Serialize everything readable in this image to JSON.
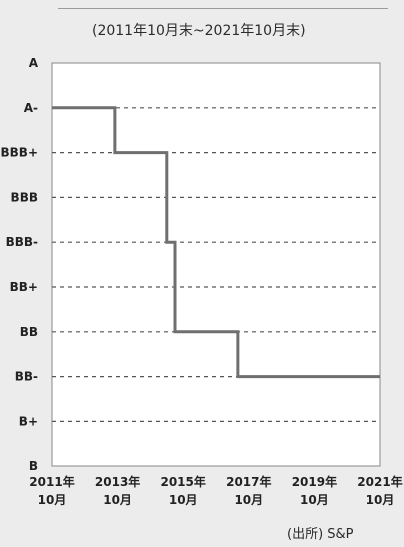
{
  "chart_data": {
    "type": "line",
    "subtitle": "(2011年10月末~2021年10月末)",
    "source": "(出所) S&P",
    "y_categories": [
      "A",
      "A-",
      "BBB+",
      "BBB",
      "BBB-",
      "BB+",
      "BB",
      "BB-",
      "B+",
      "B"
    ],
    "x_ticks": [
      {
        "year": "2011年",
        "month": "10月"
      },
      {
        "year": "2013年",
        "month": "10月"
      },
      {
        "year": "2015年",
        "month": "10月"
      },
      {
        "year": "2017年",
        "month": "10月"
      },
      {
        "year": "2019年",
        "month": "10月"
      },
      {
        "year": "2021年",
        "month": "10月"
      }
    ],
    "x_range": [
      "2011-10",
      "2021-10"
    ],
    "step_series": [
      {
        "x": "2011-10",
        "y": "A-"
      },
      {
        "x": "2013-09",
        "y": "BBB+"
      },
      {
        "x": "2015-04",
        "y": "BBB-"
      },
      {
        "x": "2015-07",
        "y": "BB"
      },
      {
        "x": "2017-06",
        "y": "BB-"
      },
      {
        "x": "2021-10",
        "y": "BB-"
      }
    ],
    "grid": "dashed horizontal",
    "line_color": "#6f6f6f",
    "background": "#ececec"
  }
}
